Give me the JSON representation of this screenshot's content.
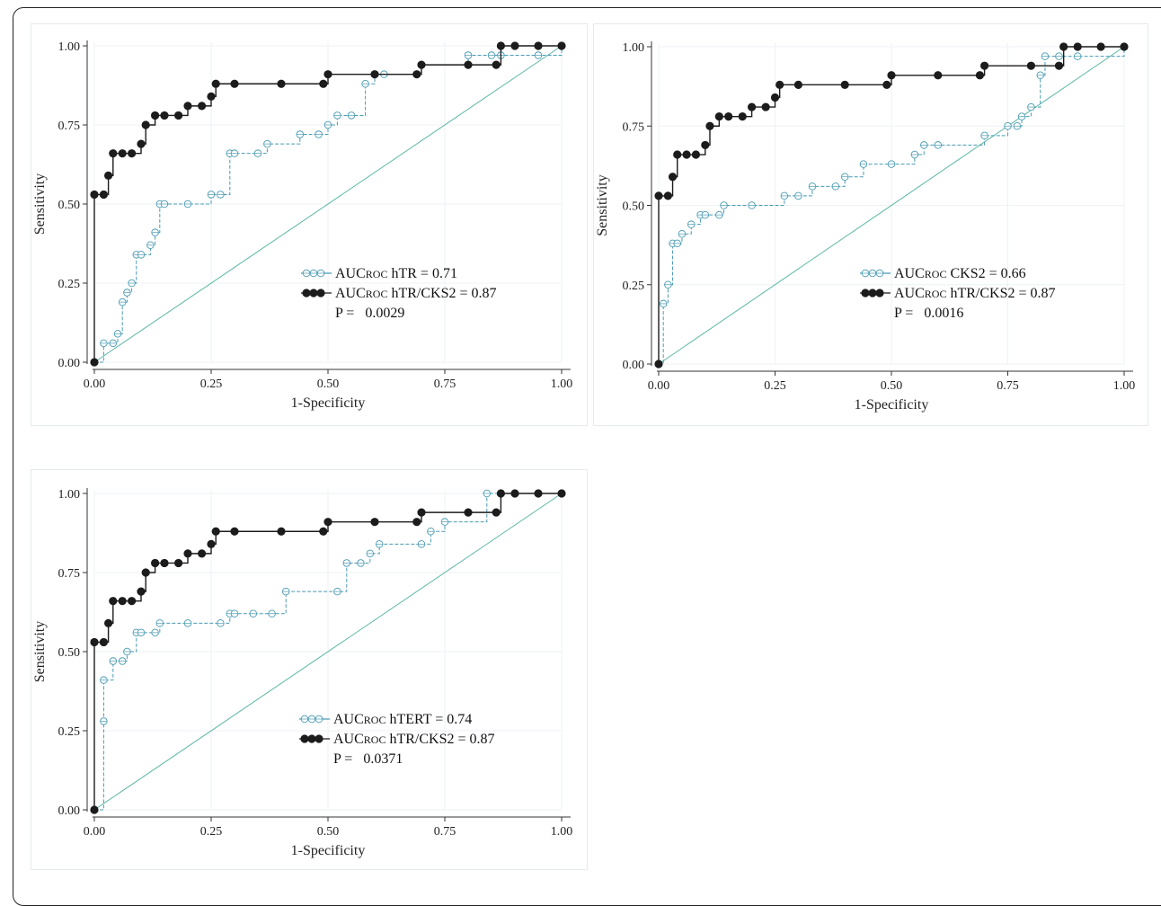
{
  "chart_data": [
    {
      "type": "line",
      "xlabel": "1-Specificity",
      "ylabel": "Sensitivity",
      "xlim": [
        0,
        1
      ],
      "ylim": [
        0,
        1
      ],
      "xticks": [
        "0.00",
        "0.25",
        "0.50",
        "0.75",
        "1.00"
      ],
      "yticks": [
        "0.00",
        "0.25",
        "0.50",
        "0.75",
        "1.00"
      ],
      "grid": true,
      "legend_position": "lower-right",
      "reference_line": true,
      "legend": {
        "entries": [
          {
            "prefix": "AUC",
            "sub": "ROC",
            "text": " hTR = 0.71"
          },
          {
            "prefix": "AUC",
            "sub": "ROC",
            "text": " hTR/CKS2 = 0.87"
          }
        ],
        "p_label": "P =",
        "p_value": "0.0029"
      },
      "series": [
        {
          "style": "open",
          "color": "#4a9bb3",
          "x": [
            0.0,
            0.02,
            0.04,
            0.05,
            0.06,
            0.07,
            0.08,
            0.09,
            0.1,
            0.12,
            0.13,
            0.14,
            0.15,
            0.2,
            0.25,
            0.27,
            0.29,
            0.3,
            0.35,
            0.37,
            0.44,
            0.48,
            0.5,
            0.52,
            0.55,
            0.58,
            0.6,
            0.62,
            0.69,
            0.7,
            0.8,
            0.85,
            0.87,
            0.95,
            1.0
          ],
          "y": [
            0.0,
            0.06,
            0.06,
            0.09,
            0.19,
            0.22,
            0.25,
            0.34,
            0.34,
            0.37,
            0.41,
            0.5,
            0.5,
            0.5,
            0.53,
            0.53,
            0.66,
            0.66,
            0.66,
            0.69,
            0.72,
            0.72,
            0.75,
            0.78,
            0.78,
            0.88,
            0.91,
            0.91,
            0.91,
            0.94,
            0.97,
            0.97,
            0.97,
            0.97,
            1.0
          ]
        },
        {
          "style": "filled",
          "color": "#1c1c1c",
          "x": [
            0.0,
            0.0,
            0.02,
            0.03,
            0.04,
            0.06,
            0.08,
            0.1,
            0.11,
            0.13,
            0.15,
            0.18,
            0.2,
            0.23,
            0.25,
            0.26,
            0.3,
            0.4,
            0.49,
            0.5,
            0.6,
            0.69,
            0.7,
            0.8,
            0.86,
            0.87,
            0.9,
            0.95,
            1.0
          ],
          "y": [
            0.0,
            0.53,
            0.53,
            0.59,
            0.66,
            0.66,
            0.66,
            0.69,
            0.75,
            0.78,
            0.78,
            0.78,
            0.81,
            0.81,
            0.84,
            0.88,
            0.88,
            0.88,
            0.88,
            0.91,
            0.91,
            0.91,
            0.94,
            0.94,
            0.94,
            1.0,
            1.0,
            1.0,
            1.0
          ]
        }
      ]
    },
    {
      "type": "line",
      "xlabel": "1-Specificity",
      "ylabel": "Sensitivity",
      "xlim": [
        0,
        1
      ],
      "ylim": [
        0,
        1
      ],
      "xticks": [
        "0.00",
        "0.25",
        "0.50",
        "0.75",
        "1.00"
      ],
      "yticks": [
        "0.00",
        "0.25",
        "0.50",
        "0.75",
        "1.00"
      ],
      "grid": true,
      "legend_position": "lower-right",
      "reference_line": true,
      "legend": {
        "entries": [
          {
            "prefix": "AUC",
            "sub": "ROC",
            "text": " CKS2 = 0.66"
          },
          {
            "prefix": "AUC",
            "sub": "ROC",
            "text": " hTR/CKS2 = 0.87"
          }
        ],
        "p_label": "P =",
        "p_value": "0.0016"
      },
      "series": [
        {
          "style": "open",
          "color": "#4a9bb3",
          "x": [
            0.0,
            0.01,
            0.02,
            0.03,
            0.04,
            0.05,
            0.07,
            0.09,
            0.1,
            0.13,
            0.14,
            0.2,
            0.27,
            0.3,
            0.33,
            0.38,
            0.4,
            0.44,
            0.5,
            0.55,
            0.57,
            0.6,
            0.7,
            0.75,
            0.77,
            0.78,
            0.8,
            0.82,
            0.83,
            0.86,
            0.9,
            1.0
          ],
          "y": [
            0.0,
            0.19,
            0.25,
            0.38,
            0.38,
            0.41,
            0.44,
            0.47,
            0.47,
            0.47,
            0.5,
            0.5,
            0.53,
            0.53,
            0.56,
            0.56,
            0.59,
            0.63,
            0.63,
            0.66,
            0.69,
            0.69,
            0.72,
            0.75,
            0.75,
            0.78,
            0.81,
            0.91,
            0.97,
            0.97,
            0.97,
            1.0
          ]
        },
        {
          "style": "filled",
          "color": "#1c1c1c",
          "x": [
            0.0,
            0.0,
            0.02,
            0.03,
            0.04,
            0.06,
            0.08,
            0.1,
            0.11,
            0.13,
            0.15,
            0.18,
            0.2,
            0.23,
            0.25,
            0.26,
            0.3,
            0.4,
            0.49,
            0.5,
            0.6,
            0.69,
            0.7,
            0.8,
            0.86,
            0.87,
            0.9,
            0.95,
            1.0
          ],
          "y": [
            0.0,
            0.53,
            0.53,
            0.59,
            0.66,
            0.66,
            0.66,
            0.69,
            0.75,
            0.78,
            0.78,
            0.78,
            0.81,
            0.81,
            0.84,
            0.88,
            0.88,
            0.88,
            0.88,
            0.91,
            0.91,
            0.91,
            0.94,
            0.94,
            0.94,
            1.0,
            1.0,
            1.0,
            1.0
          ]
        }
      ]
    },
    {
      "type": "line",
      "xlabel": "1-Specificity",
      "ylabel": "Sensitivity",
      "xlim": [
        0,
        1
      ],
      "ylim": [
        0,
        1
      ],
      "xticks": [
        "0.00",
        "0.25",
        "0.50",
        "0.75",
        "1.00"
      ],
      "yticks": [
        "0.00",
        "0.25",
        "0.50",
        "0.75",
        "1.00"
      ],
      "grid": true,
      "legend_position": "lower-right",
      "reference_line": true,
      "legend": {
        "entries": [
          {
            "prefix": "AUC",
            "sub": "ROC",
            "text": " hTERT = 0.74"
          },
          {
            "prefix": "AUC",
            "sub": "ROC",
            "text": " hTR/CKS2 = 0.87"
          }
        ],
        "p_label": "P =",
        "p_value": "0.0371"
      },
      "series": [
        {
          "style": "open",
          "color": "#4a9bb3",
          "x": [
            0.0,
            0.02,
            0.02,
            0.04,
            0.06,
            0.07,
            0.09,
            0.1,
            0.13,
            0.14,
            0.2,
            0.27,
            0.29,
            0.3,
            0.34,
            0.38,
            0.41,
            0.52,
            0.54,
            0.57,
            0.59,
            0.61,
            0.7,
            0.72,
            0.75,
            0.84,
            0.9,
            1.0
          ],
          "y": [
            0.0,
            0.28,
            0.41,
            0.47,
            0.47,
            0.5,
            0.56,
            0.56,
            0.56,
            0.59,
            0.59,
            0.59,
            0.62,
            0.62,
            0.62,
            0.62,
            0.69,
            0.69,
            0.78,
            0.78,
            0.81,
            0.84,
            0.84,
            0.88,
            0.91,
            1.0,
            1.0,
            1.0
          ]
        },
        {
          "style": "filled",
          "color": "#1c1c1c",
          "x": [
            0.0,
            0.0,
            0.02,
            0.03,
            0.04,
            0.06,
            0.08,
            0.1,
            0.11,
            0.13,
            0.15,
            0.18,
            0.2,
            0.23,
            0.25,
            0.26,
            0.3,
            0.4,
            0.49,
            0.5,
            0.6,
            0.69,
            0.7,
            0.8,
            0.86,
            0.87,
            0.9,
            0.95,
            1.0
          ],
          "y": [
            0.0,
            0.53,
            0.53,
            0.59,
            0.66,
            0.66,
            0.66,
            0.69,
            0.75,
            0.78,
            0.78,
            0.78,
            0.81,
            0.81,
            0.84,
            0.88,
            0.88,
            0.88,
            0.88,
            0.91,
            0.91,
            0.91,
            0.94,
            0.94,
            0.94,
            1.0,
            1.0,
            1.0,
            1.0
          ]
        }
      ]
    }
  ]
}
